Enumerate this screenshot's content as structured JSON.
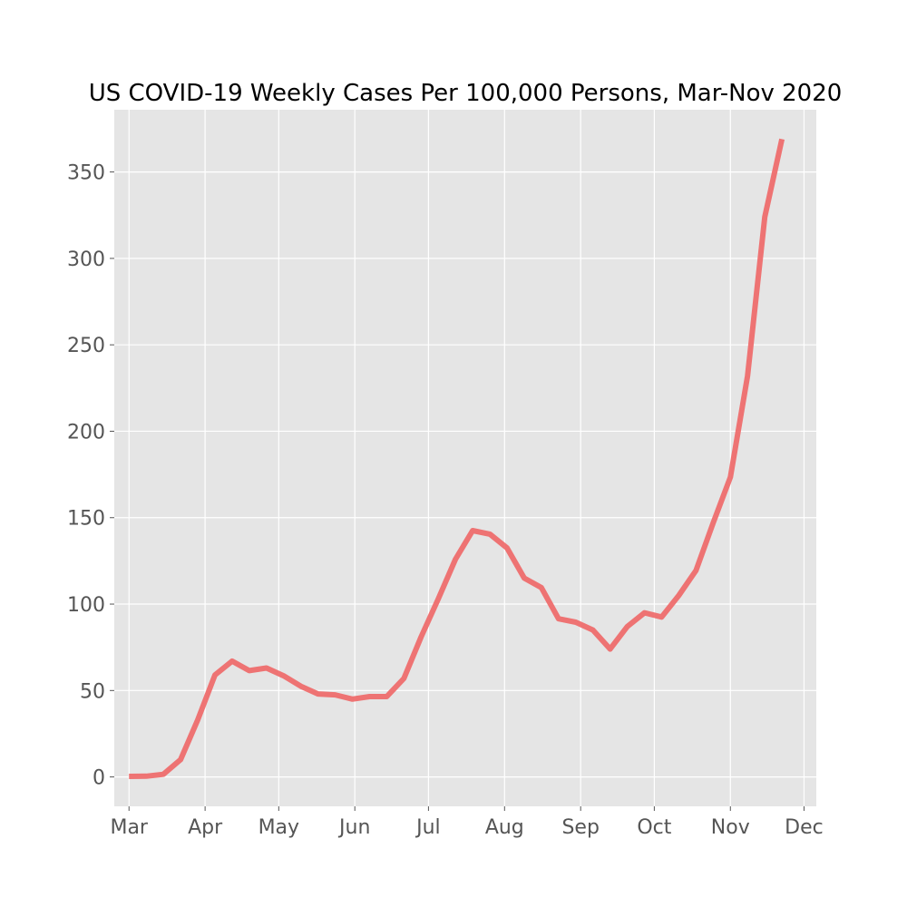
{
  "chart_data": {
    "type": "line",
    "title": "US COVID-19 Weekly Cases Per 100,000 Persons, Mar-Nov 2020",
    "xlabel": "",
    "ylabel": "",
    "grid": true,
    "x_range": [
      "2020-02-24",
      "2020-12-06"
    ],
    "ylim": [
      -17,
      386
    ],
    "x_ticks": [
      {
        "date": "2020-03-01",
        "label": "Mar"
      },
      {
        "date": "2020-04-01",
        "label": "Apr"
      },
      {
        "date": "2020-05-01",
        "label": "May"
      },
      {
        "date": "2020-06-01",
        "label": "Jun"
      },
      {
        "date": "2020-07-01",
        "label": "Jul"
      },
      {
        "date": "2020-08-01",
        "label": "Aug"
      },
      {
        "date": "2020-09-01",
        "label": "Sep"
      },
      {
        "date": "2020-10-01",
        "label": "Oct"
      },
      {
        "date": "2020-11-01",
        "label": "Nov"
      },
      {
        "date": "2020-12-01",
        "label": "Dec"
      }
    ],
    "y_ticks": [
      0,
      50,
      100,
      150,
      200,
      250,
      300,
      350
    ],
    "series": [
      {
        "color": "#ee6666",
        "x": [
          "2020-03-01",
          "2020-03-08",
          "2020-03-15",
          "2020-03-22",
          "2020-03-29",
          "2020-04-05",
          "2020-04-12",
          "2020-04-19",
          "2020-04-26",
          "2020-05-03",
          "2020-05-10",
          "2020-05-17",
          "2020-05-24",
          "2020-05-31",
          "2020-06-07",
          "2020-06-14",
          "2020-06-21",
          "2020-06-28",
          "2020-07-05",
          "2020-07-12",
          "2020-07-19",
          "2020-07-26",
          "2020-08-02",
          "2020-08-09",
          "2020-08-16",
          "2020-08-23",
          "2020-08-30",
          "2020-09-06",
          "2020-09-13",
          "2020-09-20",
          "2020-09-27",
          "2020-10-04",
          "2020-10-11",
          "2020-10-18",
          "2020-10-25",
          "2020-11-01",
          "2020-11-08",
          "2020-11-15",
          "2020-11-22"
        ],
        "y": [
          0.3,
          0.4,
          1.5,
          10,
          33,
          59,
          67,
          61.5,
          63,
          58.5,
          52.5,
          48,
          47.5,
          45,
          46.5,
          46.5,
          57,
          81,
          103,
          126,
          142.5,
          140.5,
          132.5,
          115,
          109.5,
          91.5,
          89.5,
          85,
          74,
          87,
          95,
          92.5,
          105,
          119.5,
          147,
          173.5,
          232,
          324,
          369
        ]
      }
    ]
  }
}
